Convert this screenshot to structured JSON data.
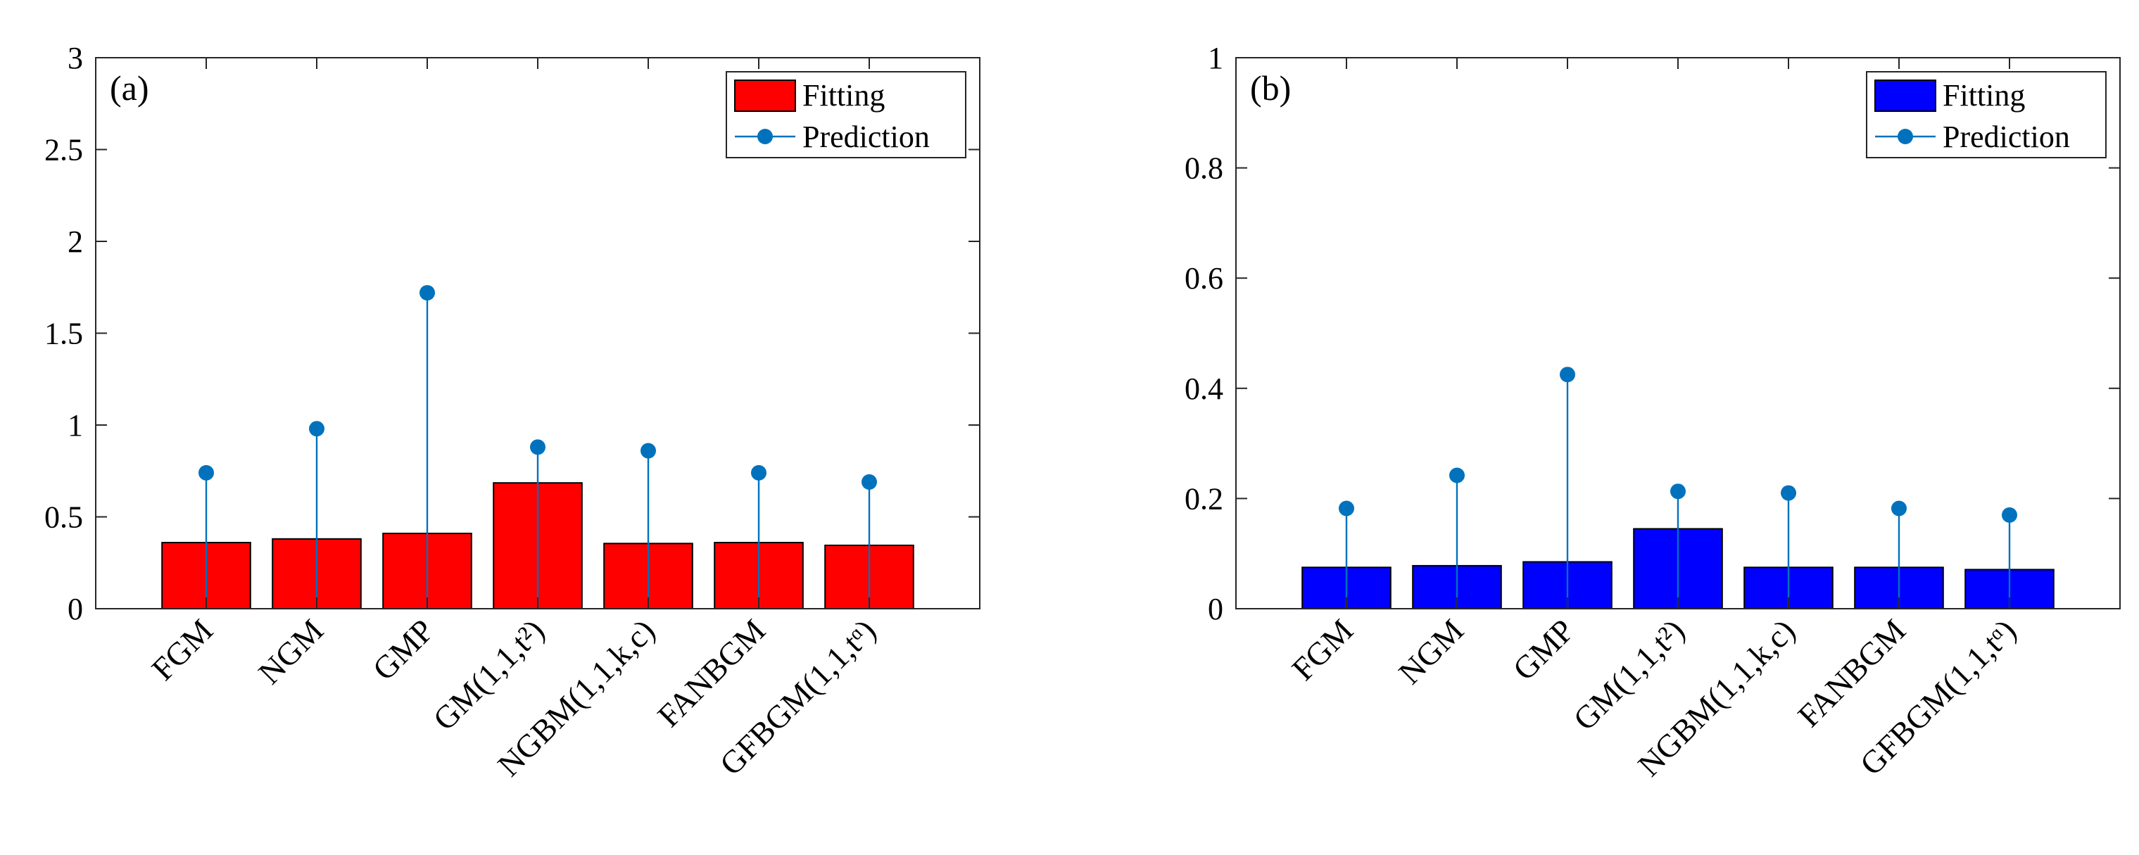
{
  "chart_data": [
    {
      "type": "bar",
      "panel_label": "(a)",
      "categories": [
        "FGM",
        "NGM",
        "GMP",
        "GM(1,1,t²)",
        "NGBM(1,1,k,c)",
        "FANBGM",
        "GFBGM(1,1,tᵅ)"
      ],
      "series": [
        {
          "name": "Fitting",
          "kind": "bar",
          "color": "#ff0000",
          "values": [
            0.36,
            0.38,
            0.41,
            0.685,
            0.355,
            0.36,
            0.345
          ]
        },
        {
          "name": "Prediction",
          "kind": "stem",
          "color": "#0072bd",
          "values": [
            0.74,
            0.98,
            1.72,
            0.88,
            0.86,
            0.74,
            0.69
          ]
        }
      ],
      "ylim": [
        0,
        3
      ],
      "yticks": [
        0,
        0.5,
        1,
        1.5,
        2,
        2.5,
        3
      ],
      "ytick_labels": [
        "0",
        "0.5",
        "1",
        "1.5",
        "2",
        "2.5",
        "3"
      ],
      "legend": {
        "position": "top-right",
        "entries": [
          "Fitting",
          "Prediction"
        ]
      }
    },
    {
      "type": "bar",
      "panel_label": "(b)",
      "categories": [
        "FGM",
        "NGM",
        "GMP",
        "GM(1,1,t²)",
        "NGBM(1,1,k,c)",
        "FANBGM",
        "GFBGM(1,1,tᵅ)"
      ],
      "series": [
        {
          "name": "Fitting",
          "kind": "bar",
          "color": "#0000ff",
          "values": [
            0.075,
            0.078,
            0.085,
            0.145,
            0.075,
            0.075,
            0.071
          ]
        },
        {
          "name": "Prediction",
          "kind": "stem",
          "color": "#0072bd",
          "values": [
            0.182,
            0.242,
            0.425,
            0.213,
            0.21,
            0.182,
            0.17
          ]
        }
      ],
      "ylim": [
        0,
        1
      ],
      "yticks": [
        0,
        0.2,
        0.4,
        0.6,
        0.8,
        1
      ],
      "ytick_labels": [
        "0",
        "0.2",
        "0.4",
        "0.6",
        "0.8",
        "1"
      ],
      "legend": {
        "position": "top-right",
        "entries": [
          "Fitting",
          "Prediction"
        ]
      }
    }
  ]
}
